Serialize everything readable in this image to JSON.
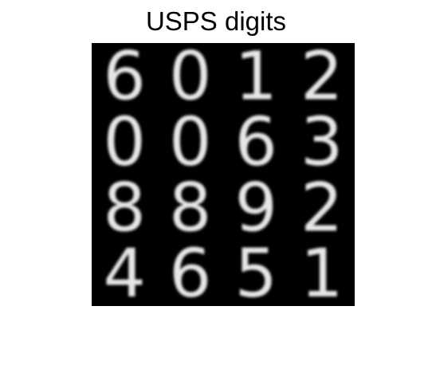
{
  "figure": {
    "title": "USPS digits"
  },
  "montage": {
    "grid_size": [
      4,
      4
    ],
    "digits": [
      [
        6,
        0,
        1,
        2
      ],
      [
        0,
        0,
        6,
        3
      ],
      [
        8,
        8,
        9,
        2
      ],
      [
        4,
        6,
        5,
        1
      ]
    ]
  },
  "colors": {
    "background": "#000000",
    "digit_stroke": "#e6e6e6",
    "page_background": "#ffffff",
    "title": "#000000"
  }
}
